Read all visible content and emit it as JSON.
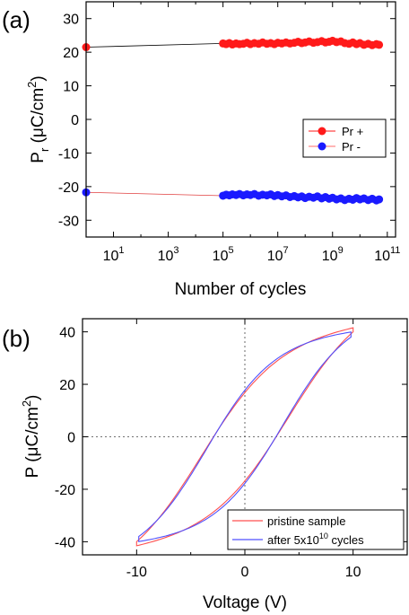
{
  "chart_data": [
    {
      "panel_label": "(a)",
      "type": "scatter",
      "xscale": "log",
      "xlim": [
        1,
        200000000000
      ],
      "ylim": [
        -35,
        35
      ],
      "xlabel": "Number of cycles",
      "ylabel": "P_r (μC/cm²)",
      "ylabel_parts": {
        "p": "P",
        "sub": "r",
        "mid": " (μC/cm",
        "sup": "2",
        "end": ")"
      },
      "xticks": [
        {
          "value": 10,
          "base": "10",
          "exp": "1"
        },
        {
          "value": 1000,
          "base": "10",
          "exp": "3"
        },
        {
          "value": 100000,
          "base": "10",
          "exp": "5"
        },
        {
          "value": 10000000,
          "base": "10",
          "exp": "7"
        },
        {
          "value": 1000000000,
          "base": "10",
          "exp": "9"
        },
        {
          "value": 100000000000,
          "base": "10",
          "exp": "11"
        }
      ],
      "yticks": [
        -30,
        -20,
        -10,
        0,
        10,
        20,
        30
      ],
      "legend_position": "right",
      "series": [
        {
          "name": "Pr +",
          "color": "#ff1a1a",
          "x": [
            1,
            100000,
            130000,
            170000,
            220000,
            300000,
            400000,
            550000,
            750000,
            1000000,
            1400000,
            2000000,
            2800000,
            4000000,
            5500000,
            7500000,
            10000000,
            14000000,
            20000000,
            28000000,
            40000000,
            55000000,
            75000000,
            100000000,
            140000000,
            200000000,
            280000000,
            400000000,
            550000000,
            750000000,
            1000000000,
            1400000000,
            2000000000,
            2800000000,
            4000000000,
            5500000000,
            7500000000,
            10000000000,
            14000000000,
            20000000000,
            28000000000,
            40000000000,
            50000000000
          ],
          "y": [
            21.5,
            22.6,
            22.4,
            22.7,
            22.3,
            22.6,
            22.4,
            22.5,
            22.8,
            22.4,
            22.7,
            22.5,
            22.9,
            22.5,
            22.7,
            22.4,
            22.8,
            22.6,
            22.9,
            22.6,
            22.8,
            23.1,
            22.7,
            22.9,
            23.2,
            22.8,
            23.0,
            23.3,
            22.9,
            23.1,
            23.4,
            23.0,
            23.2,
            22.7,
            22.5,
            22.9,
            22.4,
            22.7,
            22.2,
            22.5,
            22.1,
            22.4,
            22.2
          ]
        },
        {
          "name": "Pr -",
          "color": "#1a1aff",
          "x": [
            1,
            100000,
            130000,
            170000,
            220000,
            300000,
            400000,
            550000,
            750000,
            1000000,
            1400000,
            2000000,
            2800000,
            4000000,
            5500000,
            7500000,
            10000000,
            14000000,
            20000000,
            28000000,
            40000000,
            55000000,
            75000000,
            100000000,
            140000000,
            200000000,
            280000000,
            400000000,
            550000000,
            750000000,
            1000000000,
            1400000000,
            2000000000,
            2800000000,
            4000000000,
            5500000000,
            7500000000,
            10000000000,
            14000000000,
            20000000000,
            28000000000,
            40000000000,
            50000000000
          ],
          "y": [
            -21.7,
            -22.7,
            -22.4,
            -22.6,
            -22.3,
            -22.5,
            -22.2,
            -22.6,
            -22.3,
            -22.5,
            -22.2,
            -22.7,
            -22.4,
            -22.6,
            -22.3,
            -22.8,
            -22.5,
            -22.9,
            -22.6,
            -23.1,
            -22.8,
            -23.2,
            -22.9,
            -23.4,
            -23.0,
            -23.3,
            -22.9,
            -23.5,
            -23.1,
            -23.6,
            -23.3,
            -23.8,
            -23.5,
            -24.0,
            -23.6,
            -23.9,
            -23.4,
            -23.8,
            -23.5,
            -24.0,
            -23.6,
            -24.1,
            -23.8
          ]
        }
      ]
    },
    {
      "panel_label": "(b)",
      "type": "line",
      "xlim": [
        -15,
        15
      ],
      "ylim": [
        -45,
        45
      ],
      "xlabel": "Voltage (V)",
      "ylabel": "P (μC/cm²)",
      "ylabel_parts": {
        "p": "P",
        "mid": " (μC/cm",
        "sup": "2",
        "end": ")"
      },
      "xticks": [
        -10,
        0,
        10
      ],
      "yticks": [
        -40,
        -20,
        0,
        20,
        40
      ],
      "legend_position": "bottom-right",
      "series": [
        {
          "name": "pristine sample",
          "color": "#ff5050",
          "hysteresis": {
            "vmax": 10,
            "pmax": 40,
            "coercive_v": 4.0,
            "remanent_p": 22
          }
        },
        {
          "name": "after 5x10¹⁰ cycles",
          "legend_parts": {
            "pre": "after 5x10",
            "sup": "10",
            "post": " cycles"
          },
          "color": "#5050ff",
          "hysteresis": {
            "vmax": 9.8,
            "pmax": 38,
            "coercive_v": 3.5,
            "remanent_p": 21
          }
        }
      ]
    }
  ]
}
